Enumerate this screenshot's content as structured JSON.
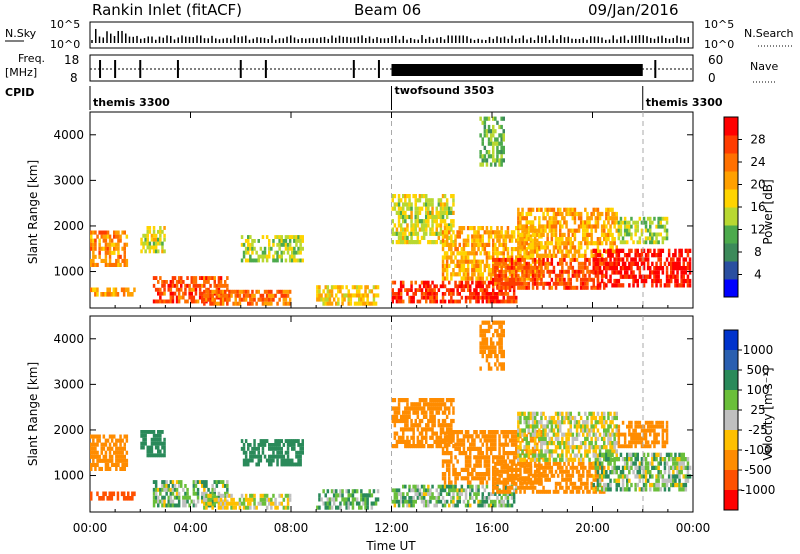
{
  "header": {
    "station": "Rankin Inlet (fitACF)",
    "beam": "Beam 06",
    "date": "09/Jan/2016"
  },
  "top_panels": {
    "nsky_label": "N.Sky",
    "nsky_ticks": [
      "10^5",
      "10^0"
    ],
    "nsearch_label": "N.Search",
    "nsearch_ticks": [
      "10^5",
      "10^0"
    ],
    "freq_label_1": "Freq.",
    "freq_label_2": "[MHz]",
    "freq_ticks": [
      "18",
      "8"
    ],
    "nave_label": "Nave",
    "nave_ticks": [
      "60",
      "0"
    ],
    "cpid_label": "CPID",
    "cpid_segments": [
      {
        "name": "themis 3300",
        "start_hour": 0,
        "end_hour": 12
      },
      {
        "name": "twofsound 3503",
        "start_hour": 12,
        "end_hour": 22
      },
      {
        "name": "themis 3300",
        "start_hour": 22,
        "end_hour": 24
      }
    ]
  },
  "colors": {
    "power_scale": [
      "#0000ff",
      "#2a4fa0",
      "#3c8a5a",
      "#4caa4c",
      "#b8d832",
      "#ffd400",
      "#ffa000",
      "#ff7000",
      "#ff3c00",
      "#ff0000"
    ],
    "velocity_scale": [
      "#0033cc",
      "#2a5fb0",
      "#2a8a5a",
      "#6abf3a",
      "#c0c0c0",
      "#ffc000",
      "#ff8c00",
      "#ff5000",
      "#ff0000"
    ],
    "velocity_bins": [
      "#2a5fb0",
      "#2a8a5a",
      "#6abf3a",
      "#c0c0c0",
      "#ffc000",
      "#ff8c00",
      "#ff5000",
      "#ff0000"
    ]
  },
  "chart_data": [
    {
      "type": "heatmap",
      "panel": "power",
      "ylabel": "Slant Range [km]",
      "xlim_hours": [
        0,
        24
      ],
      "ylim_km": [
        200,
        4500
      ],
      "yticks": [
        1000,
        2000,
        3000,
        4000
      ],
      "colorbar": {
        "label": "Power [dB]",
        "ticks": [
          "4",
          "8",
          "12",
          "16",
          "20",
          "24",
          "28"
        ],
        "range": [
          0,
          32
        ]
      },
      "echo_regions": [
        {
          "t0": 0.0,
          "t1": 1.5,
          "r0": 1100,
          "r1": 1900,
          "val": 22
        },
        {
          "t0": 0.0,
          "t1": 1.8,
          "r0": 450,
          "r1": 650,
          "val": 20
        },
        {
          "t0": 2.0,
          "t1": 3.0,
          "r0": 1400,
          "r1": 2000,
          "val": 16
        },
        {
          "t0": 2.5,
          "t1": 5.5,
          "r0": 300,
          "r1": 900,
          "val": 26
        },
        {
          "t0": 4.5,
          "t1": 8.0,
          "r0": 250,
          "r1": 600,
          "val": 24
        },
        {
          "t0": 6.0,
          "t1": 8.5,
          "r0": 1200,
          "r1": 1800,
          "val": 14
        },
        {
          "t0": 9.0,
          "t1": 11.5,
          "r0": 250,
          "r1": 700,
          "val": 18
        },
        {
          "t0": 12.0,
          "t1": 17.0,
          "r0": 300,
          "r1": 800,
          "val": 28
        },
        {
          "t0": 12.0,
          "t1": 14.5,
          "r0": 1600,
          "r1": 2700,
          "val": 16
        },
        {
          "t0": 14.0,
          "t1": 18.0,
          "r0": 800,
          "r1": 2000,
          "val": 20
        },
        {
          "t0": 16.0,
          "t1": 20.5,
          "r0": 600,
          "r1": 1300,
          "val": 26
        },
        {
          "t0": 17.0,
          "t1": 21.0,
          "r0": 1300,
          "r1": 2400,
          "val": 20
        },
        {
          "t0": 20.0,
          "t1": 24.0,
          "r0": 650,
          "r1": 1500,
          "val": 30
        },
        {
          "t0": 21.0,
          "t1": 23.0,
          "r0": 1600,
          "r1": 2200,
          "val": 14
        },
        {
          "t0": 15.5,
          "t1": 16.5,
          "r0": 3300,
          "r1": 4400,
          "val": 12
        }
      ]
    },
    {
      "type": "heatmap",
      "panel": "velocity",
      "ylabel": "Slant Range [km]",
      "xlabel": "Time UT",
      "xlim_hours": [
        0,
        24
      ],
      "xtick_labels": [
        "00:00",
        "04:00",
        "08:00",
        "12:00",
        "16:00",
        "20:00",
        "00:00"
      ],
      "ylim_km": [
        200,
        4500
      ],
      "yticks": [
        1000,
        2000,
        3000,
        4000
      ],
      "colorbar": {
        "label": "Velocity [m s⁻¹]",
        "ticks": [
          "1000",
          "500",
          "100",
          "25",
          "-25",
          "-100",
          "-500",
          "-1000"
        ]
      },
      "echo_regions": [
        {
          "t0": 0.0,
          "t1": 1.5,
          "r0": 1100,
          "r1": 1900,
          "val": -300
        },
        {
          "t0": 0.0,
          "t1": 1.8,
          "r0": 450,
          "r1": 650,
          "val": -600
        },
        {
          "t0": 2.0,
          "t1": 3.0,
          "r0": 1400,
          "r1": 2000,
          "val": 200
        },
        {
          "t0": 2.5,
          "t1": 5.5,
          "r0": 300,
          "r1": 900,
          "val": 60
        },
        {
          "t0": 4.5,
          "t1": 8.0,
          "r0": 250,
          "r1": 600,
          "val": 0
        },
        {
          "t0": 6.0,
          "t1": 8.5,
          "r0": 1200,
          "r1": 1800,
          "val": 300
        },
        {
          "t0": 9.0,
          "t1": 11.5,
          "r0": 250,
          "r1": 700,
          "val": 80
        },
        {
          "t0": 12.0,
          "t1": 17.0,
          "r0": 300,
          "r1": 800,
          "val": 60
        },
        {
          "t0": 12.0,
          "t1": 14.5,
          "r0": 1600,
          "r1": 2700,
          "val": -300
        },
        {
          "t0": 14.0,
          "t1": 18.0,
          "r0": 800,
          "r1": 2000,
          "val": -200
        },
        {
          "t0": 16.0,
          "t1": 20.5,
          "r0": 600,
          "r1": 1300,
          "val": -250
        },
        {
          "t0": 17.0,
          "t1": 21.0,
          "r0": 1300,
          "r1": 2400,
          "val": 0
        },
        {
          "t0": 20.0,
          "t1": 24.0,
          "r0": 650,
          "r1": 1500,
          "val": 50
        },
        {
          "t0": 21.0,
          "t1": 23.0,
          "r0": 1600,
          "r1": 2200,
          "val": -300
        },
        {
          "t0": 15.5,
          "t1": 16.5,
          "r0": 3300,
          "r1": 4400,
          "val": -400
        }
      ]
    }
  ]
}
